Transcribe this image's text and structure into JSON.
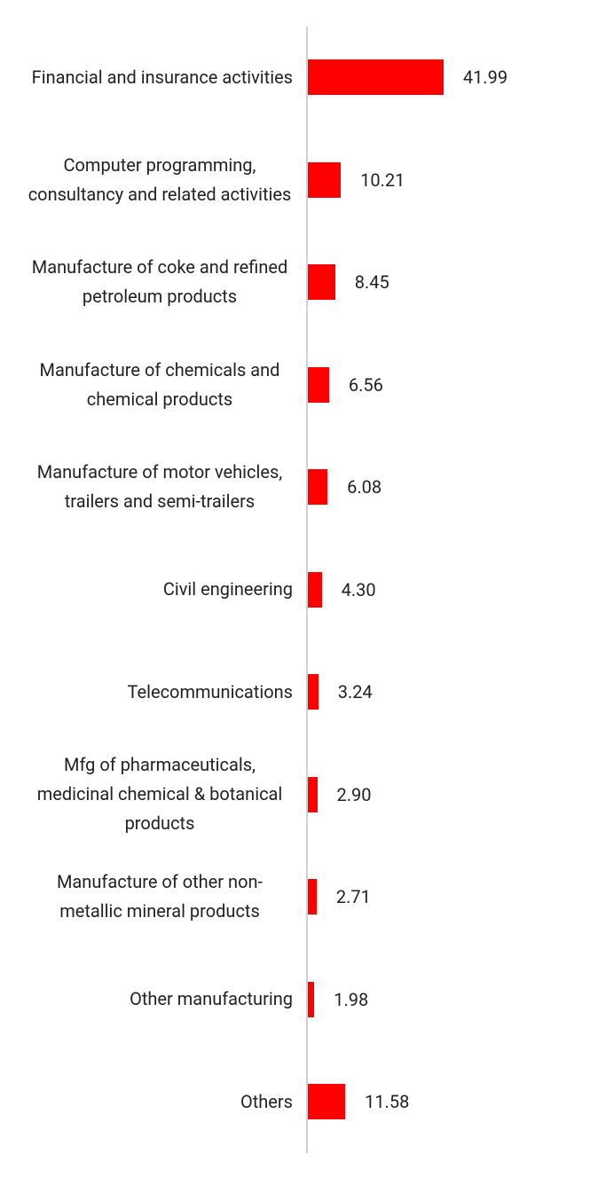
{
  "chart_data": {
    "type": "bar",
    "orientation": "horizontal",
    "categories": [
      "Financial and insurance activities",
      "Computer programming, consultancy and related activities",
      "Manufacture of coke and refined petroleum products",
      "Manufacture of chemicals and chemical products",
      "Manufacture of motor vehicles, trailers and semi-trailers",
      "Civil engineering",
      "Telecommunications",
      "Mfg of pharmaceuticals, medicinal chemical & botanical products",
      "Manufacture of other non-metallic mineral products",
      "Other manufacturing",
      "Others"
    ],
    "values": [
      41.99,
      10.21,
      8.45,
      6.56,
      6.08,
      4.3,
      3.24,
      2.9,
      2.71,
      1.98,
      11.58
    ],
    "value_labels": [
      "41.99",
      "10.21",
      "8.45",
      "6.56",
      "6.08",
      "4.30",
      "3.24",
      "2.90",
      "2.71",
      "1.98",
      "11.58"
    ],
    "color": "#ff0000"
  }
}
